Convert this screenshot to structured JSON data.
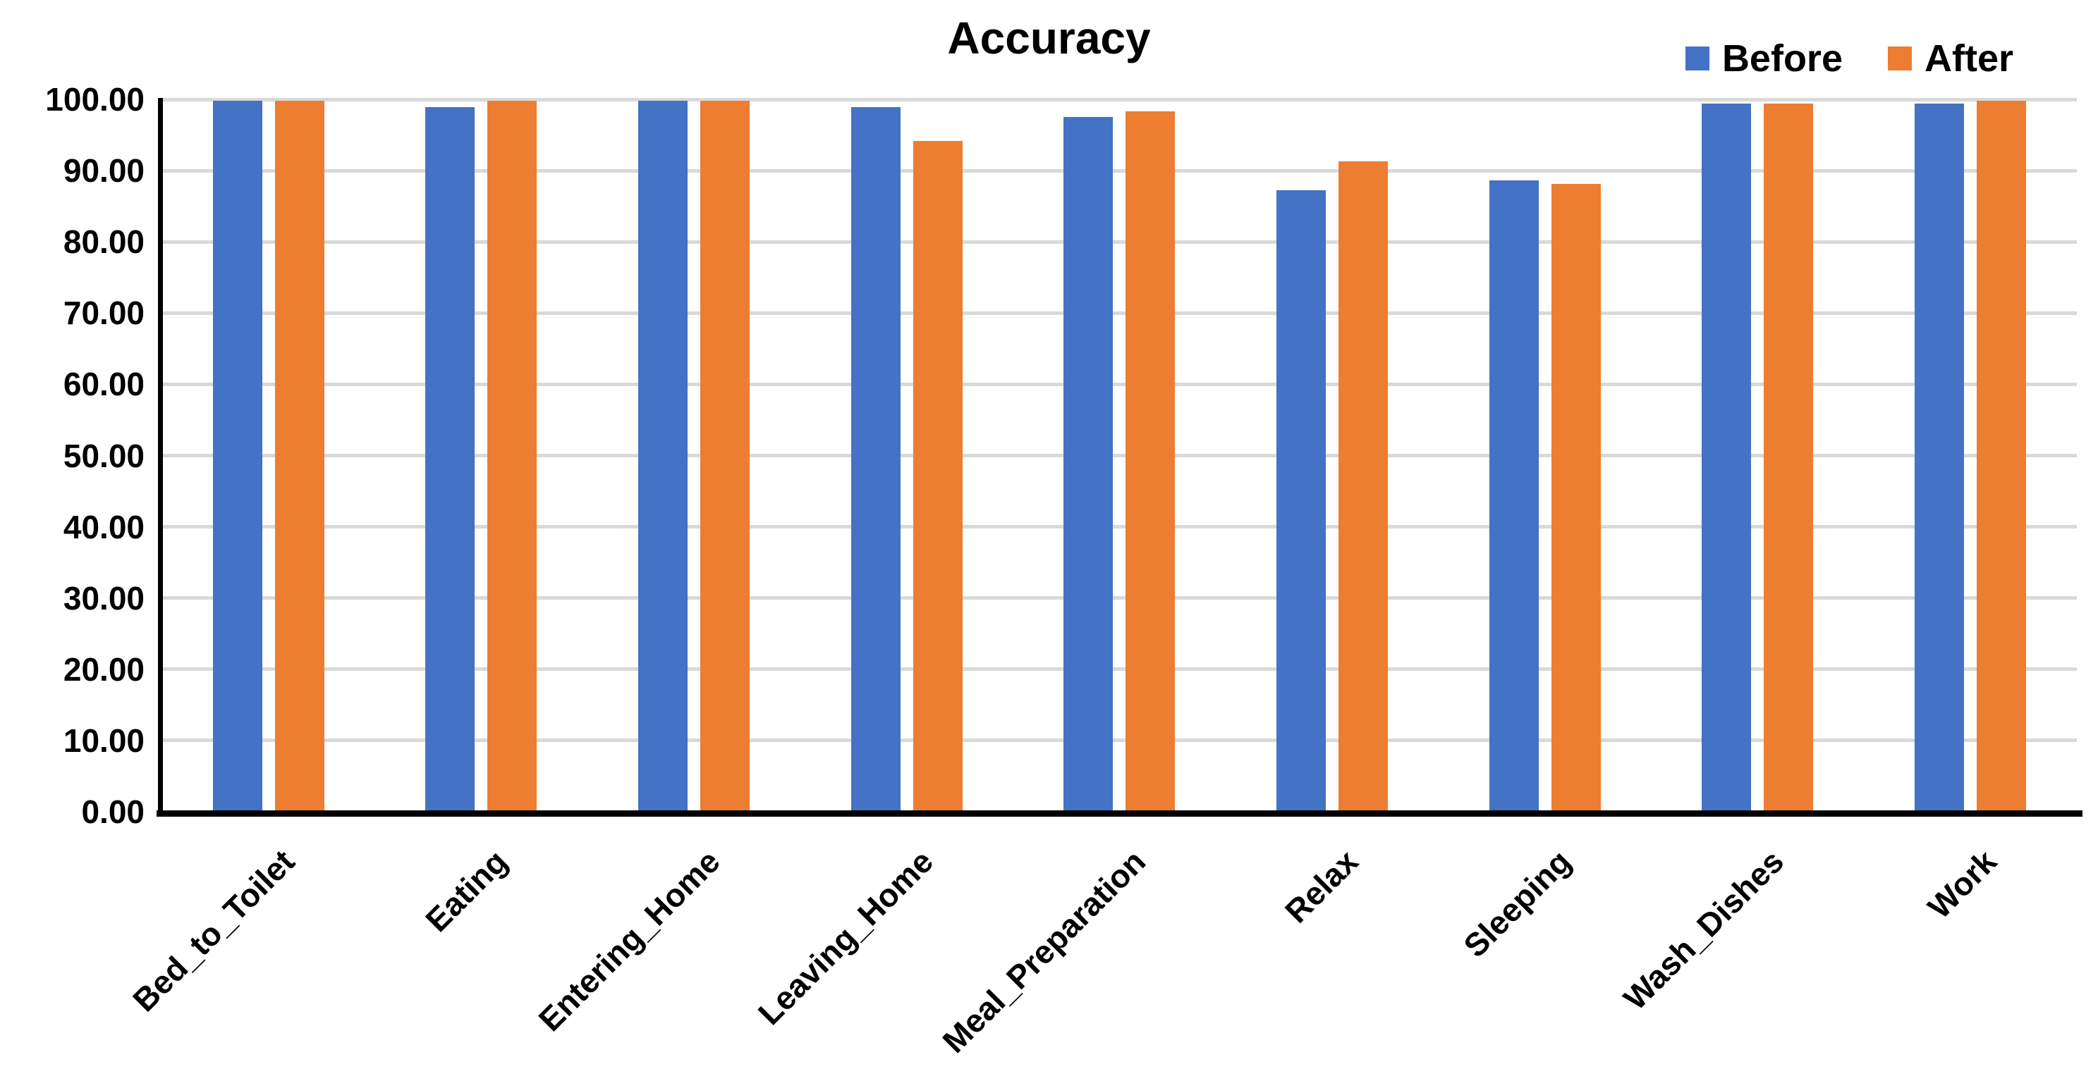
{
  "chart_data": {
    "type": "bar",
    "title": "Accuracy",
    "categories": [
      "Bed_to_Toilet",
      "Eating",
      "Entering_Home",
      "Leaving_Home",
      "Meal_Preparation",
      "Relax",
      "Sleeping",
      "Wash_Dishes",
      "Work"
    ],
    "series": [
      {
        "name": "Before",
        "color": "#4472C4",
        "values": [
          99.8,
          98.9,
          99.8,
          98.9,
          97.5,
          87.2,
          88.6,
          99.4,
          99.4
        ]
      },
      {
        "name": "After",
        "color": "#ED7D31",
        "values": [
          99.8,
          99.8,
          99.8,
          94.2,
          98.3,
          91.3,
          88.1,
          99.4,
          99.8
        ]
      }
    ],
    "xlabel": "",
    "ylabel": "",
    "ylim": [
      0,
      100
    ],
    "ytick_step": 10,
    "ytick_labels": [
      "100.00",
      "90.00",
      "80.00",
      "70.00",
      "60.00",
      "50.00",
      "40.00",
      "30.00",
      "20.00",
      "10.00",
      "0.00"
    ],
    "grid": true,
    "gridline_color": "#D9D9D9",
    "axis_color": "#000000",
    "legend_position": "top-right"
  }
}
